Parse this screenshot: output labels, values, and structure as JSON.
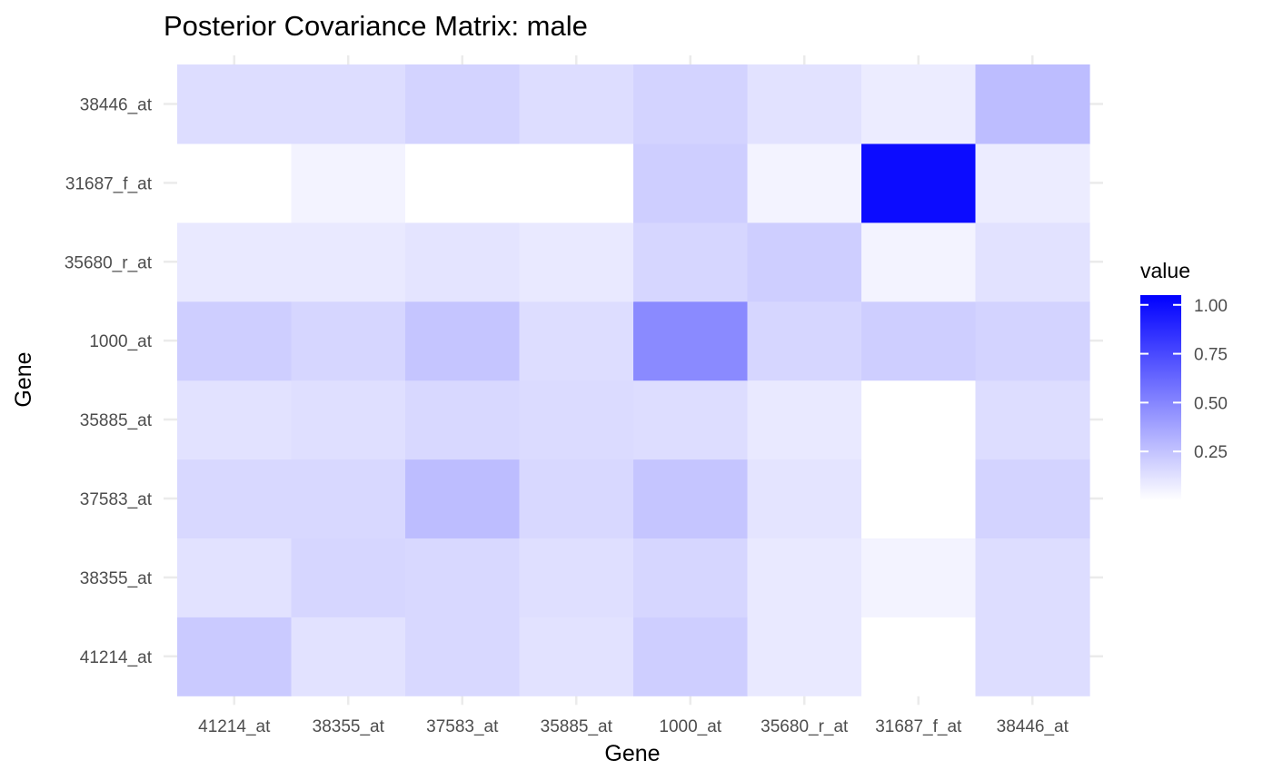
{
  "chart_data": {
    "type": "heatmap",
    "title": "Posterior Covariance Matrix: male",
    "xlabel": "Gene",
    "ylabel": "Gene",
    "x_categories": [
      "41214_at",
      "38355_at",
      "37583_at",
      "35885_at",
      "1000_at",
      "35680_r_at",
      "31687_f_at",
      "38446_at"
    ],
    "y_categories": [
      "41214_at",
      "38355_at",
      "37583_at",
      "35885_at",
      "1000_at",
      "35680_r_at",
      "31687_f_at",
      "38446_at"
    ],
    "values": [
      [
        0.22,
        0.12,
        0.16,
        0.12,
        0.2,
        0.09,
        0.0,
        0.14
      ],
      [
        0.12,
        0.17,
        0.16,
        0.13,
        0.17,
        0.09,
        0.05,
        0.14
      ],
      [
        0.16,
        0.16,
        0.27,
        0.16,
        0.24,
        0.11,
        0.0,
        0.18
      ],
      [
        0.12,
        0.13,
        0.16,
        0.15,
        0.14,
        0.09,
        0.0,
        0.14
      ],
      [
        0.2,
        0.17,
        0.24,
        0.14,
        0.48,
        0.17,
        0.2,
        0.18
      ],
      [
        0.09,
        0.09,
        0.11,
        0.09,
        0.17,
        0.2,
        0.05,
        0.12
      ],
      [
        0.0,
        0.05,
        0.0,
        0.0,
        0.2,
        0.05,
        1.0,
        0.08
      ],
      [
        0.14,
        0.14,
        0.18,
        0.14,
        0.18,
        0.12,
        0.08,
        0.27
      ]
    ],
    "legend": {
      "title": "value",
      "ticks": [
        1.0,
        0.75,
        0.5,
        0.25
      ],
      "tick_labels": [
        "1.00",
        "0.75",
        "0.50",
        "0.25"
      ],
      "range": [
        0.0,
        1.05
      ],
      "low_color": "#ffffff",
      "high_color": "#0000ff",
      "placement": "right"
    },
    "grid": true
  }
}
